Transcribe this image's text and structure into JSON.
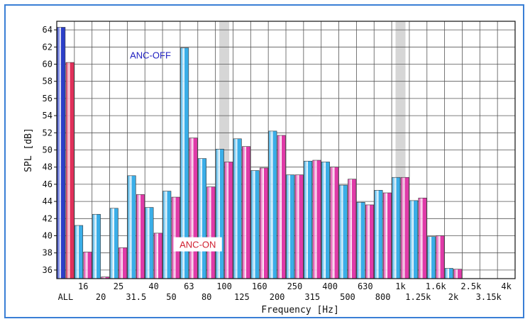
{
  "chart_data": {
    "type": "bar",
    "xlabel": "Frequency [Hz]",
    "ylabel": "SPL [dB]",
    "ylim": [
      35,
      65
    ],
    "yticks": [
      36,
      38,
      40,
      42,
      44,
      46,
      48,
      50,
      52,
      54,
      56,
      58,
      60,
      62,
      64
    ],
    "grid": true,
    "categories": [
      "ALL",
      "16",
      "20",
      "25",
      "31.5",
      "40",
      "50",
      "63",
      "80",
      "100",
      "125",
      "160",
      "200",
      "250",
      "315",
      "400",
      "500",
      "630",
      "800",
      "1k",
      "1.25k",
      "1.6k",
      "2k",
      "2.5k",
      "3.15k",
      "4k"
    ],
    "highlighted_categories": [
      "100",
      "1k"
    ],
    "series": [
      {
        "name": "ANC-OFF",
        "color": "#3aaee8",
        "all_color": "#2b3fc8",
        "values": [
          64.3,
          41.2,
          42.5,
          43.2,
          47.0,
          43.3,
          45.2,
          61.9,
          49.0,
          50.1,
          51.3,
          47.6,
          52.2,
          47.1,
          48.7,
          48.6,
          45.9,
          43.9,
          45.3,
          46.8,
          44.1,
          39.9,
          36.2,
          null,
          null,
          null
        ]
      },
      {
        "name": "ANC-ON",
        "color": "#e03aa8",
        "all_color": "#e0305a",
        "values": [
          60.2,
          38.1,
          35.2,
          38.6,
          44.8,
          40.3,
          44.5,
          51.4,
          45.7,
          48.6,
          50.4,
          47.9,
          51.7,
          47.1,
          48.8,
          48.0,
          46.6,
          43.6,
          45.0,
          46.8,
          44.4,
          40.0,
          36.1,
          null,
          null,
          null
        ]
      }
    ],
    "annotations": [
      {
        "text": "ANC-OFF",
        "color": "#2020c0"
      },
      {
        "text": "ANC-ON",
        "color": "#d02030"
      }
    ]
  }
}
